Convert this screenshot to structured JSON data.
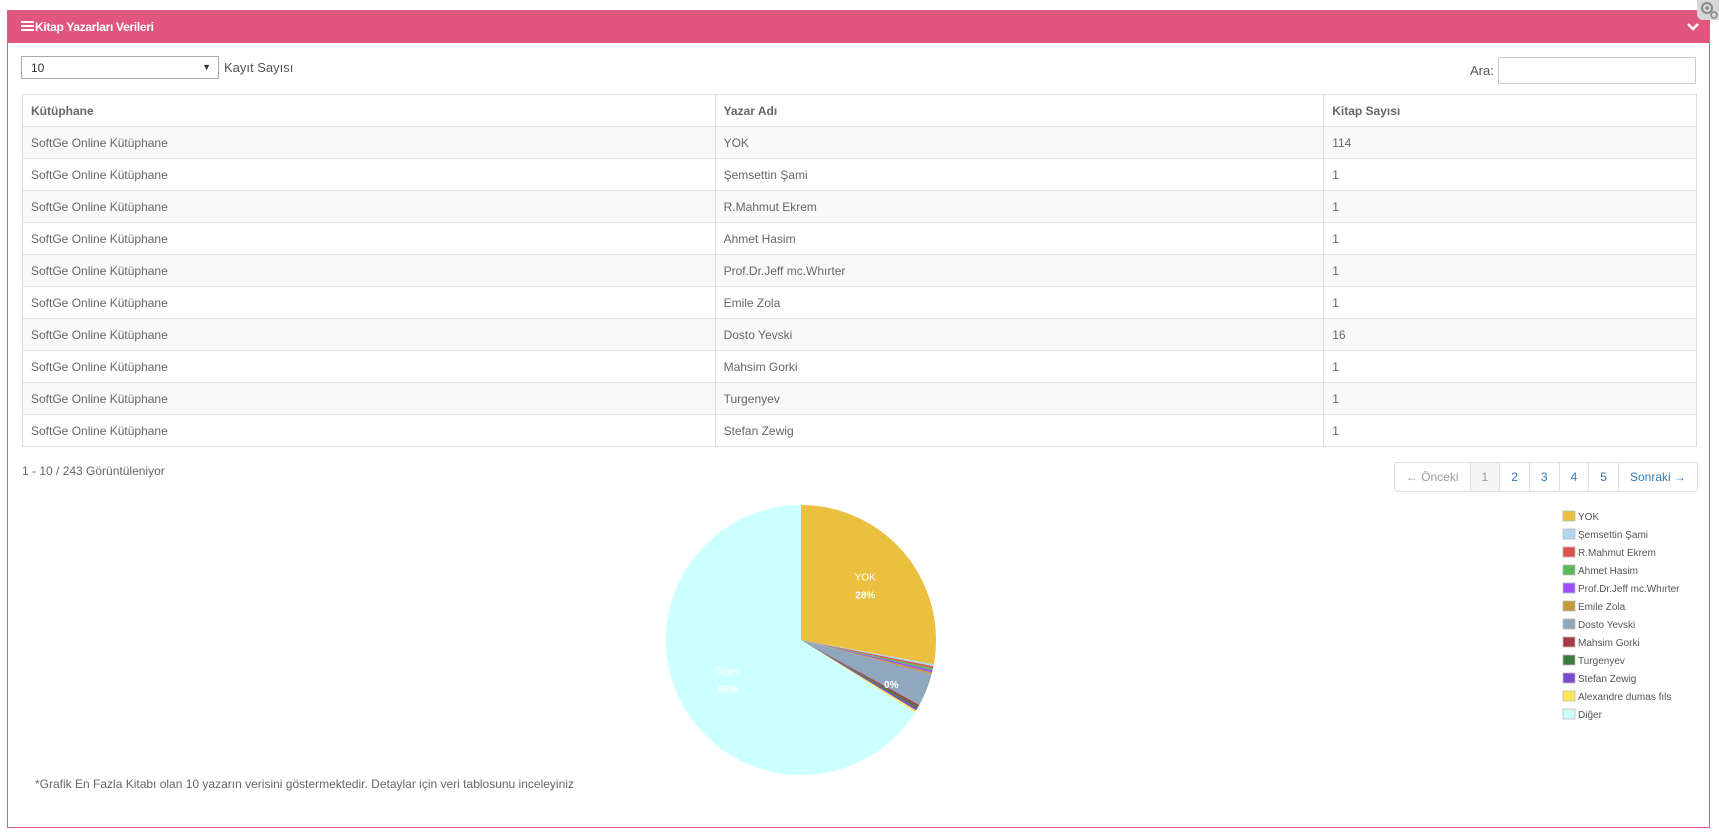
{
  "panel": {
    "title": "Kitap Yazarları Verileri"
  },
  "controls": {
    "page_size": "10",
    "page_size_label": "Kayıt Sayısı",
    "search_label": "Ara:",
    "search_value": ""
  },
  "table": {
    "headers": [
      "Kütüphane",
      "Yazar Adı",
      "Kitap Sayısı"
    ],
    "rows": [
      [
        "SoftGe Online Kütüphane",
        "YOK",
        "114"
      ],
      [
        "SoftGe Online Kütüphane",
        "Şemsettin Şami",
        "1"
      ],
      [
        "SoftGe Online Kütüphane",
        "R.Mahmut Ekrem",
        "1"
      ],
      [
        "SoftGe Online Kütüphane",
        "Ahmet Hasim",
        "1"
      ],
      [
        "SoftGe Online Kütüphane",
        "Prof.Dr.Jeff mc.Whırter",
        "1"
      ],
      [
        "SoftGe Online Kütüphane",
        "Emile Zola",
        "1"
      ],
      [
        "SoftGe Online Kütüphane",
        "Dosto Yevski",
        "16"
      ],
      [
        "SoftGe Online Kütüphane",
        "Mahsim Gorki",
        "1"
      ],
      [
        "SoftGe Online Kütüphane",
        "Turgenyev",
        "1"
      ],
      [
        "SoftGe Online Kütüphane",
        "Stefan Zewig",
        "1"
      ]
    ]
  },
  "info_text": "1 - 10 / 243 Görüntüleniyor",
  "pagination": {
    "prev": "← Önceki",
    "pages": [
      "1",
      "2",
      "3",
      "4",
      "5"
    ],
    "next": "Sonraki →",
    "active": "1"
  },
  "chart_data": {
    "type": "pie",
    "labels": [
      "YOK",
      "Şemsettin Şami",
      "R.Mahmut Ekrem",
      "Ahmet Hasim",
      "Prof.Dr.Jeff mc.Whırter",
      "Emile Zola",
      "Dosto Yevski",
      "Mahsim Gorki",
      "Turgenyev",
      "Stefan Zewig",
      "Alexandre dumas fıls",
      "Diğer"
    ],
    "values": [
      114,
      1,
      1,
      1,
      1,
      1,
      16,
      1,
      1,
      1,
      1,
      270
    ],
    "colors": [
      "#ebc03f",
      "#aed8f2",
      "#d9534f",
      "#5cb85c",
      "#9b4dff",
      "#c39a3a",
      "#8fa8c0",
      "#a83a45",
      "#3d7a3d",
      "#7a4ad0",
      "#ffe45c",
      "#ccffff"
    ],
    "slice_labels": [
      {
        "name": "YOK",
        "percent": "28%"
      },
      {
        "name": "Diğer",
        "percent": "66%"
      },
      {
        "name": "",
        "percent": "0%"
      }
    ],
    "legend_position": "right"
  },
  "note": "*Grafik En Fazla Kitabı olan 10 yazarın verisini göstermektedir. Detaylar için veri tablosunu inceleyiniz"
}
